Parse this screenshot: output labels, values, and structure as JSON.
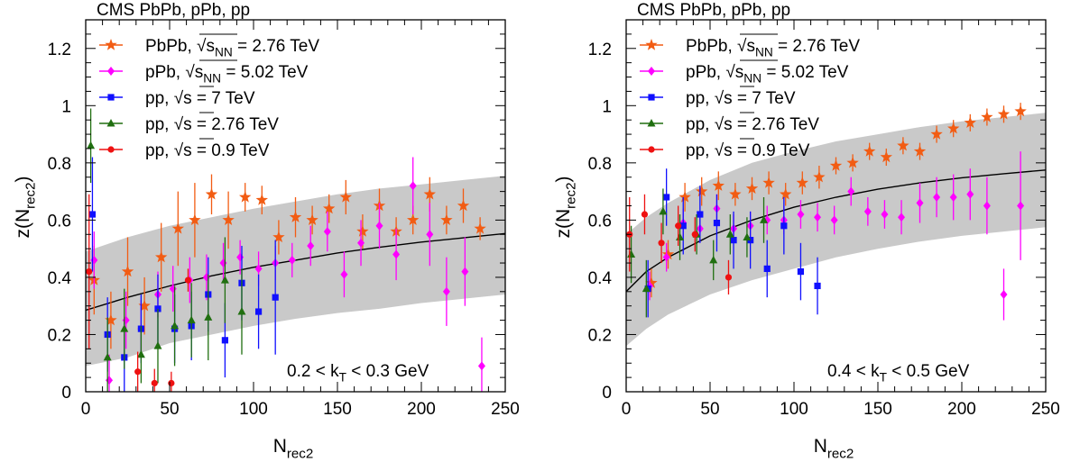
{
  "chart_data": [
    {
      "type": "scatter",
      "title": "CMS PbPb, pPb, pp",
      "xlabel": "N",
      "xlabel_sub": "rec2",
      "ylabel": "z(N",
      "ylabel_sub": "rec2",
      "ylabel_close": ")",
      "xlim": [
        0,
        250
      ],
      "ylim": [
        0,
        1.3
      ],
      "x_ticks": [
        "0",
        "50",
        "100",
        "150",
        "200",
        "250"
      ],
      "x_tick_values": [
        0,
        50,
        100,
        150,
        200,
        250
      ],
      "y_ticks": [
        "0",
        "0.2",
        "0.4",
        "0.6",
        "0.8",
        "1",
        "1.2"
      ],
      "y_tick_values": [
        0,
        0.2,
        0.4,
        0.6,
        0.8,
        1.0,
        1.2
      ],
      "annotation": "0.2 < k",
      "annotation_sub": "T",
      "annotation_tail": " < 0.3 GeV",
      "legend_position": "top-left",
      "fit_curve": {
        "x": [
          0,
          25,
          50,
          75,
          100,
          125,
          150,
          175,
          200,
          225,
          250
        ],
        "y": [
          0.285,
          0.33,
          0.37,
          0.405,
          0.435,
          0.46,
          0.485,
          0.505,
          0.523,
          0.538,
          0.553
        ]
      },
      "band": {
        "x": [
          0,
          25,
          50,
          75,
          100,
          125,
          150,
          175,
          200,
          225,
          250
        ],
        "low": [
          0.09,
          0.12,
          0.17,
          0.2,
          0.23,
          0.255,
          0.275,
          0.29,
          0.31,
          0.325,
          0.34
        ],
        "high": [
          0.49,
          0.54,
          0.58,
          0.61,
          0.64,
          0.665,
          0.69,
          0.71,
          0.725,
          0.74,
          0.755
        ]
      },
      "series": [
        {
          "name": "PbPb, √s",
          "name_sub": "NN",
          "name_tail": " = 2.76 TeV",
          "marker": "star",
          "color": "#f25c13",
          "x": [
            5,
            15,
            25,
            35,
            45,
            55,
            65,
            75,
            85,
            95,
            105,
            115,
            125,
            135,
            145,
            155,
            165,
            175,
            185,
            195,
            205,
            215,
            225,
            235
          ],
          "y": [
            0.39,
            0.25,
            0.42,
            0.3,
            0.47,
            0.57,
            0.6,
            0.69,
            0.6,
            0.68,
            0.67,
            0.54,
            0.61,
            0.6,
            0.64,
            0.68,
            0.56,
            0.65,
            0.56,
            0.6,
            0.69,
            0.6,
            0.65,
            0.57
          ],
          "err": [
            0.12,
            0.1,
            0.12,
            0.1,
            0.12,
            0.13,
            0.13,
            0.07,
            0.1,
            0.05,
            0.05,
            0.06,
            0.07,
            0.05,
            0.05,
            0.06,
            0.06,
            0.06,
            0.05,
            0.05,
            0.06,
            0.05,
            0.06,
            0.04
          ]
        },
        {
          "name": "pPb, √s",
          "name_sub": "NN",
          "name_tail": " = 5.02 TeV",
          "marker": "diamond",
          "color": "#ff00ff",
          "x": [
            5,
            14,
            24,
            33,
            43,
            52,
            62,
            72,
            82,
            92,
            103,
            113,
            123,
            134,
            144,
            154,
            164,
            175,
            185,
            195,
            205,
            215,
            226,
            236
          ],
          "y": [
            0.46,
            0.04,
            0.25,
            0.22,
            0.34,
            0.36,
            0.39,
            0.4,
            0.45,
            0.47,
            0.43,
            0.45,
            0.46,
            0.51,
            0.56,
            0.41,
            0.52,
            0.58,
            0.48,
            0.72,
            0.55,
            0.35,
            0.42,
            0.09
          ],
          "err": [
            0.1,
            0.09,
            0.1,
            0.1,
            0.08,
            0.08,
            0.08,
            0.08,
            0.07,
            0.06,
            0.06,
            0.06,
            0.06,
            0.07,
            0.07,
            0.08,
            0.08,
            0.08,
            0.09,
            0.1,
            0.11,
            0.12,
            0.12,
            0.1
          ]
        },
        {
          "name": "pp, √s",
          "name_sub": "",
          "name_tail": " = 7 TeV",
          "marker": "square",
          "color": "#1010ff",
          "x": [
            4,
            13,
            23,
            33,
            43,
            53,
            63,
            73,
            83,
            93,
            103,
            113
          ],
          "y": [
            0.62,
            0.2,
            0.12,
            0.22,
            0.29,
            0.22,
            0.23,
            0.34,
            0.18,
            0.38,
            0.28,
            0.33
          ],
          "err": [
            0.2,
            0.13,
            0.12,
            0.12,
            0.12,
            0.12,
            0.12,
            0.13,
            0.13,
            0.13,
            0.13,
            0.2
          ]
        },
        {
          "name": "pp, √s",
          "name_sub": "",
          "name_tail": " = 2.76 TeV",
          "marker": "triangle",
          "color": "#206f10",
          "x": [
            3,
            13,
            23,
            33,
            43,
            53,
            63,
            73,
            83,
            93
          ],
          "y": [
            0.86,
            0.12,
            0.22,
            0.13,
            0.16,
            0.23,
            0.25,
            0.26,
            0.39,
            0.28
          ],
          "err": [
            0.13,
            0.14,
            0.14,
            0.1,
            0.13,
            0.14,
            0.13,
            0.15,
            0.15,
            0.15
          ]
        },
        {
          "name": "pp, √s",
          "name_sub": "",
          "name_tail": " = 0.9 TeV",
          "marker": "circle",
          "color": "#ee1111",
          "x": [
            2,
            31,
            41,
            51,
            61
          ],
          "y": [
            0.42,
            0.07,
            0.03,
            0.03,
            0.39
          ],
          "err": [
            0.27,
            0.07,
            0.05,
            0.04,
            0.04
          ]
        }
      ]
    },
    {
      "type": "scatter",
      "title": "CMS PbPb, pPb, pp",
      "xlabel": "N",
      "xlabel_sub": "rec2",
      "ylabel": "z(N",
      "ylabel_sub": "rec2",
      "ylabel_close": ")",
      "xlim": [
        0,
        250
      ],
      "ylim": [
        0,
        1.3
      ],
      "x_ticks": [
        "0",
        "50",
        "100",
        "150",
        "200",
        "250"
      ],
      "x_tick_values": [
        0,
        50,
        100,
        150,
        200,
        250
      ],
      "y_ticks": [
        "0",
        "0.2",
        "0.4",
        "0.6",
        "0.8",
        "1",
        "1.2"
      ],
      "y_tick_values": [
        0,
        0.2,
        0.4,
        0.6,
        0.8,
        1.0,
        1.2
      ],
      "annotation": "0.4 < k",
      "annotation_sub": "T",
      "annotation_tail": " < 0.5 GeV",
      "legend_position": "top-left",
      "fit_curve": {
        "x": [
          0,
          12,
          25,
          50,
          75,
          100,
          125,
          150,
          175,
          200,
          225,
          250
        ],
        "y": [
          0.35,
          0.42,
          0.47,
          0.545,
          0.6,
          0.645,
          0.68,
          0.708,
          0.73,
          0.748,
          0.762,
          0.775
        ]
      },
      "band": {
        "x": [
          0,
          12,
          25,
          50,
          75,
          100,
          125,
          150,
          175,
          200,
          225,
          250
        ],
        "low": [
          0.16,
          0.22,
          0.27,
          0.34,
          0.39,
          0.43,
          0.47,
          0.5,
          0.525,
          0.545,
          0.56,
          0.575
        ],
        "high": [
          0.55,
          0.61,
          0.66,
          0.74,
          0.8,
          0.84,
          0.875,
          0.9,
          0.925,
          0.945,
          0.96,
          0.975
        ]
      },
      "series": [
        {
          "name": "PbPb, √s",
          "name_sub": "NN",
          "name_tail": " = 2.76 TeV",
          "marker": "star",
          "color": "#f25c13",
          "x": [
            15,
            25,
            35,
            45,
            55,
            65,
            75,
            85,
            95,
            105,
            115,
            125,
            135,
            145,
            155,
            165,
            175,
            185,
            195,
            205,
            215,
            225,
            235
          ],
          "y": [
            0.38,
            0.48,
            0.68,
            0.7,
            0.72,
            0.69,
            0.71,
            0.73,
            0.69,
            0.73,
            0.75,
            0.79,
            0.8,
            0.84,
            0.82,
            0.86,
            0.84,
            0.9,
            0.92,
            0.94,
            0.96,
            0.97,
            0.98
          ],
          "err": [
            0.05,
            0.05,
            0.05,
            0.05,
            0.05,
            0.04,
            0.04,
            0.04,
            0.04,
            0.04,
            0.04,
            0.03,
            0.03,
            0.03,
            0.03,
            0.03,
            0.03,
            0.03,
            0.03,
            0.03,
            0.03,
            0.03,
            0.03
          ]
        },
        {
          "name": "pPb, √s",
          "name_sub": "NN",
          "name_tail": " = 5.02 TeV",
          "marker": "diamond",
          "color": "#ff00ff",
          "x": [
            14,
            24,
            34,
            44,
            54,
            64,
            74,
            84,
            94,
            104,
            114,
            124,
            134,
            144,
            154,
            164,
            175,
            185,
            195,
            205,
            215,
            225,
            235
          ],
          "y": [
            0.37,
            0.47,
            0.59,
            0.57,
            0.64,
            0.57,
            0.58,
            0.6,
            0.6,
            0.62,
            0.61,
            0.6,
            0.7,
            0.63,
            0.62,
            0.61,
            0.66,
            0.68,
            0.68,
            0.69,
            0.65,
            0.34,
            0.65
          ],
          "err": [
            0.05,
            0.05,
            0.05,
            0.05,
            0.05,
            0.05,
            0.05,
            0.05,
            0.05,
            0.05,
            0.05,
            0.05,
            0.05,
            0.05,
            0.05,
            0.06,
            0.07,
            0.07,
            0.08,
            0.09,
            0.1,
            0.09,
            0.19
          ]
        },
        {
          "name": "pp, √s",
          "name_sub": "",
          "name_tail": " = 7 TeV",
          "marker": "square",
          "color": "#1010ff",
          "x": [
            13,
            24,
            34,
            44,
            54,
            64,
            74,
            84,
            94,
            104,
            114
          ],
          "y": [
            0.36,
            0.68,
            0.58,
            0.62,
            0.59,
            0.53,
            0.53,
            0.43,
            0.58,
            0.42,
            0.37
          ],
          "err": [
            0.1,
            0.1,
            0.1,
            0.1,
            0.1,
            0.1,
            0.1,
            0.1,
            0.1,
            0.1,
            0.1
          ]
        },
        {
          "name": "pp, √s",
          "name_sub": "",
          "name_tail": " = 2.76 TeV",
          "marker": "triangle",
          "color": "#206f10",
          "x": [
            3,
            12,
            22,
            32,
            42,
            52,
            62,
            72,
            82
          ],
          "y": [
            0.48,
            0.36,
            0.63,
            0.54,
            0.55,
            0.46,
            0.55,
            0.54,
            0.6
          ],
          "err": [
            0.1,
            0.1,
            0.08,
            0.08,
            0.07,
            0.07,
            0.07,
            0.07,
            0.08
          ]
        },
        {
          "name": "pp, √s",
          "name_sub": "",
          "name_tail": " = 0.9 TeV",
          "marker": "circle",
          "color": "#ee1111",
          "x": [
            2,
            11,
            21,
            31,
            41,
            61
          ],
          "y": [
            0.55,
            0.62,
            0.52,
            0.58,
            0.55,
            0.4
          ],
          "err": [
            0.13,
            0.07,
            0.07,
            0.07,
            0.06,
            0.06
          ]
        }
      ]
    }
  ]
}
